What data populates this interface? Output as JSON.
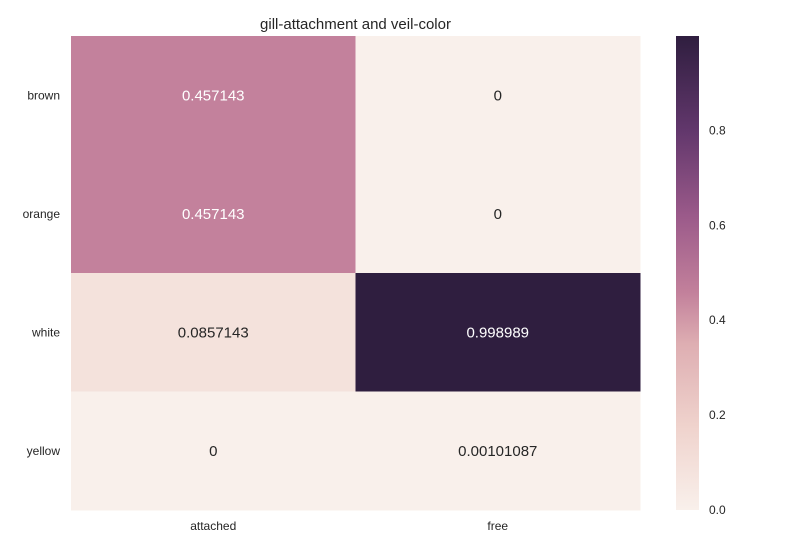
{
  "chart_data": {
    "type": "heatmap",
    "title": "gill-attachment and veil-color",
    "xlabel": "",
    "ylabel": "",
    "x_categories": [
      "attached",
      "free"
    ],
    "y_categories": [
      "brown",
      "orange",
      "white",
      "yellow"
    ],
    "values": [
      [
        0.457143,
        0
      ],
      [
        0.457143,
        0
      ],
      [
        0.0857143,
        0.998989
      ],
      [
        0,
        0.00101087
      ]
    ],
    "annotations": [
      [
        "0.457143",
        "0"
      ],
      [
        "0.457143",
        "0"
      ],
      [
        "0.0857143",
        "0.998989"
      ],
      [
        "0",
        "0.00101087"
      ]
    ],
    "colorbar": {
      "range": [
        0,
        0.998989
      ],
      "ticks": [
        0.0,
        0.2,
        0.4,
        0.6,
        0.8
      ],
      "tick_labels": [
        "0.0",
        "0.2",
        "0.4",
        "0.6",
        "0.8"
      ]
    },
    "colors": {
      "low": "#f9f0eb",
      "high": "#2f1e3f"
    },
    "grid": false
  }
}
